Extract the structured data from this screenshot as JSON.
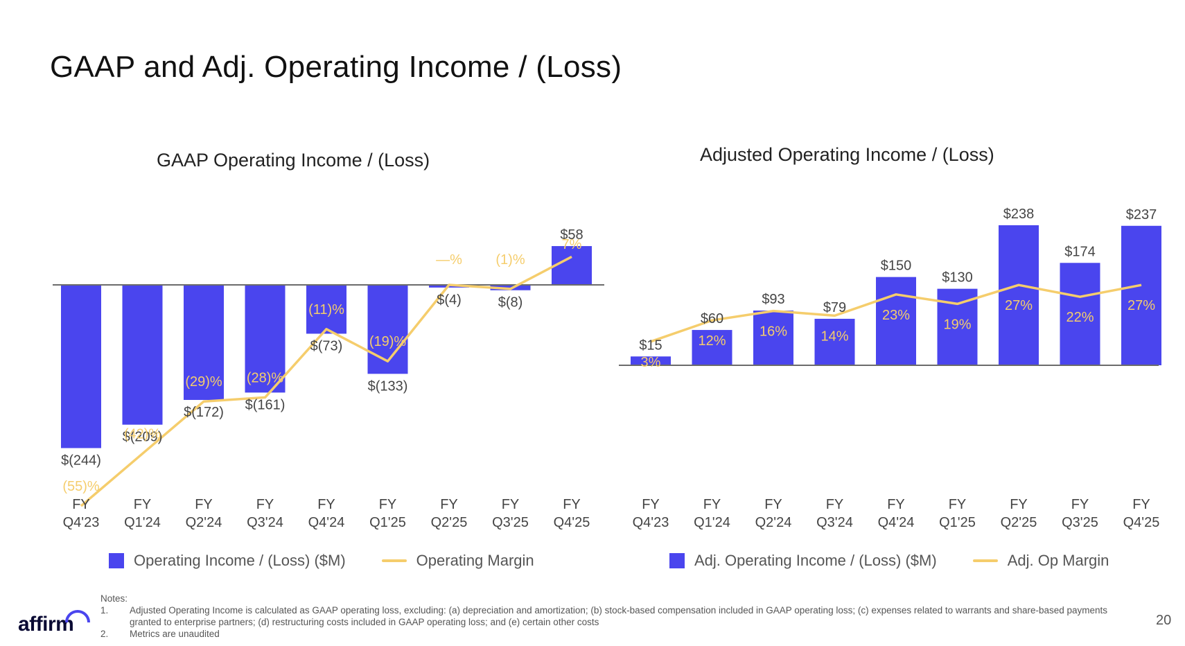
{
  "page": {
    "title": "GAAP and Adj. Operating Income / (Loss)",
    "page_number": "20",
    "logo_text": "affirm"
  },
  "colors": {
    "bar": "#4A45EE",
    "line": "#F5CD6C",
    "axis": "#6b6b6b",
    "label": "#444444"
  },
  "legends": {
    "gaap": {
      "bar": "Operating Income / (Loss) ($M)",
      "line": "Operating Margin"
    },
    "adj": {
      "bar": "Adj. Operating Income / (Loss) ($M)",
      "line": "Adj. Op Margin"
    }
  },
  "notes": {
    "header": "Notes:",
    "items": [
      {
        "num": "1.",
        "text": "Adjusted Operating Income is calculated as GAAP operating loss, excluding: (a) depreciation and amortization; (b) stock-based compensation included in GAAP operating loss; (c) expenses related to warrants and share-based payments granted to enterprise partners; (d) restructuring costs included in GAAP operating loss;  and (e) certain other costs"
      },
      {
        "num": "2.",
        "text": "Metrics are unaudited"
      }
    ]
  },
  "chart_data": [
    {
      "type": "bar",
      "title": "GAAP Operating Income / (Loss)",
      "categories": [
        [
          "FY",
          "Q4'23"
        ],
        [
          "FY",
          "Q1'24"
        ],
        [
          "FY",
          "Q2'24"
        ],
        [
          "FY",
          "Q3'24"
        ],
        [
          "FY",
          "Q4'24"
        ],
        [
          "FY",
          "Q1'25"
        ],
        [
          "FY",
          "Q2'25"
        ],
        [
          "FY",
          "Q3'25"
        ],
        [
          "FY",
          "Q4'25"
        ]
      ],
      "series": [
        {
          "name": "Operating Income / (Loss) ($M)",
          "type": "bar",
          "values": [
            -244,
            -209,
            -172,
            -161,
            -73,
            -133,
            -4,
            -8,
            58
          ],
          "labels": [
            "$(244)",
            "$(209)",
            "$(172)",
            "$(161)",
            "$(73)",
            "$(133)",
            "$(4)",
            "$(8)",
            "$58"
          ]
        },
        {
          "name": "Operating Margin",
          "type": "line",
          "values": [
            -55,
            -42,
            -29,
            -28,
            -11,
            -19,
            0,
            -1,
            7
          ],
          "labels": [
            "(55)%",
            "(42)%",
            "(29)%",
            "(28)%",
            "(11)%",
            "(19)%",
            "—%",
            "(1)%",
            "7%"
          ]
        }
      ]
    },
    {
      "type": "bar",
      "title": "Adjusted Operating Income / (Loss)",
      "categories": [
        [
          "FY",
          "Q4'23"
        ],
        [
          "FY",
          "Q1'24"
        ],
        [
          "FY",
          "Q2'24"
        ],
        [
          "FY",
          "Q3'24"
        ],
        [
          "FY",
          "Q4'24"
        ],
        [
          "FY",
          "Q1'25"
        ],
        [
          "FY",
          "Q2'25"
        ],
        [
          "FY",
          "Q3'25"
        ],
        [
          "FY",
          "Q4'25"
        ]
      ],
      "series": [
        {
          "name": "Adj. Operating Income / (Loss) ($M)",
          "type": "bar",
          "values": [
            15,
            60,
            93,
            79,
            150,
            130,
            238,
            174,
            237
          ],
          "labels": [
            "$15",
            "$60",
            "$93",
            "$79",
            "$150",
            "$130",
            "$238",
            "$174",
            "$237"
          ]
        },
        {
          "name": "Adj. Op Margin",
          "type": "line",
          "values": [
            3,
            12,
            16,
            14,
            23,
            19,
            27,
            22,
            27
          ],
          "labels": [
            "3%",
            "12%",
            "16%",
            "14%",
            "23%",
            "19%",
            "27%",
            "22%",
            "27%"
          ]
        }
      ]
    }
  ]
}
